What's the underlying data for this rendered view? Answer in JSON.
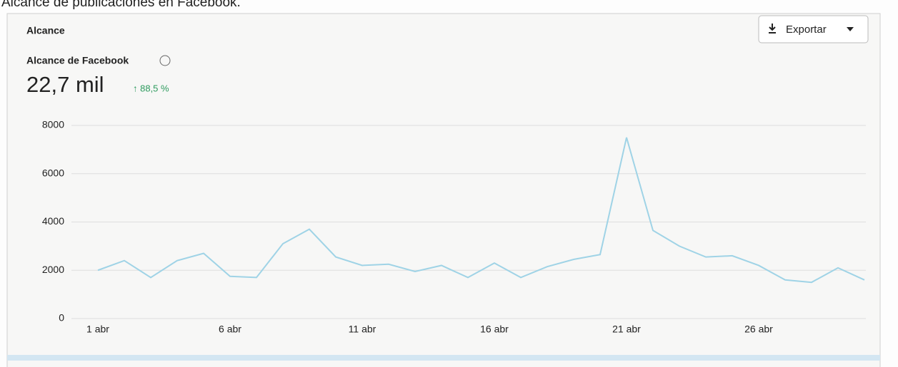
{
  "header": {
    "page_title": "Alcance de publicaciones en Facebook.",
    "card_title": "Alcance",
    "export_label": "Exportar",
    "metric_label": "Alcance de Facebook",
    "metric_value": "22,7 mil",
    "metric_change": "↑ 88,5 %"
  },
  "chart_data": {
    "type": "line",
    "categories": [
      "1 abr",
      null,
      null,
      null,
      null,
      "6 abr",
      null,
      null,
      null,
      null,
      "11 abr",
      null,
      null,
      null,
      null,
      "16 abr",
      null,
      null,
      null,
      null,
      "21 abr",
      null,
      null,
      null,
      null,
      "26 abr",
      null,
      null,
      null,
      null
    ],
    "series": [
      {
        "name": "Alcance de Facebook",
        "color": "#9fd3e6",
        "values": [
          2000,
          2400,
          1700,
          2400,
          2700,
          1750,
          1700,
          3100,
          3700,
          2550,
          2200,
          2250,
          1950,
          2200,
          1700,
          2300,
          1700,
          2150,
          2450,
          2650,
          7500,
          3650,
          3000,
          2550,
          2600,
          2200,
          1600,
          1500,
          2100,
          1600
        ]
      }
    ],
    "ylim": [
      0,
      8000
    ],
    "yticks": [
      0,
      2000,
      4000,
      6000,
      8000
    ],
    "grid": true
  }
}
